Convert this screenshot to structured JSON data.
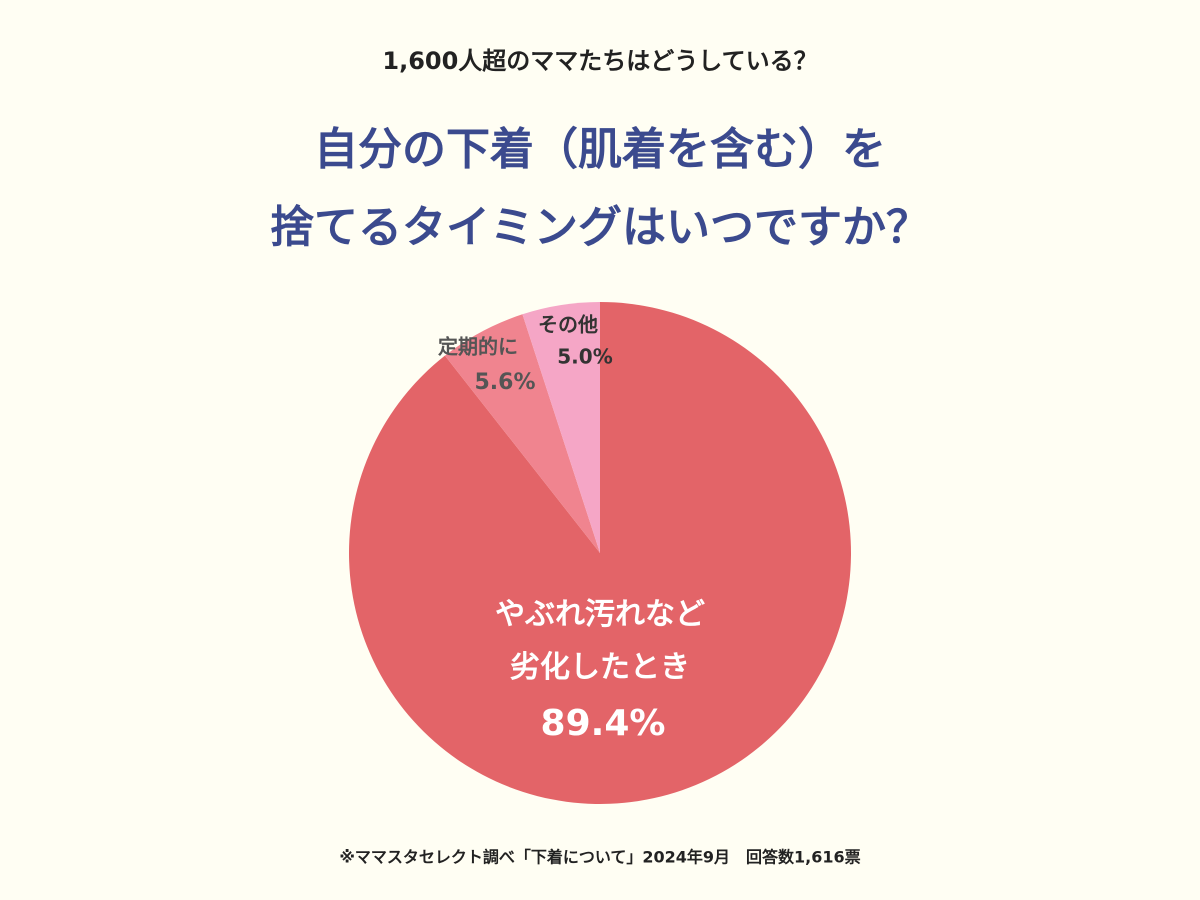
{
  "chart_data": {
    "type": "pie",
    "subtitle": "1,600人超のママたちはどうしている？",
    "title": "自分の下着（肌着を含む）を\n捨てるタイミングはいつですか？",
    "categories": [
      "やぶれ汚れなど\n劣化したとき",
      "定期的に",
      "その他"
    ],
    "values": [
      89.4,
      5.6,
      5.0
    ],
    "value_labels": [
      "89.4%",
      "5.6%",
      "5.0%"
    ],
    "colors": [
      "#e36468",
      "#f0848f",
      "#f5a6c6"
    ],
    "note": "※ママスタセレクト調べ「下着について」2024年9月　回答数1,616票"
  }
}
